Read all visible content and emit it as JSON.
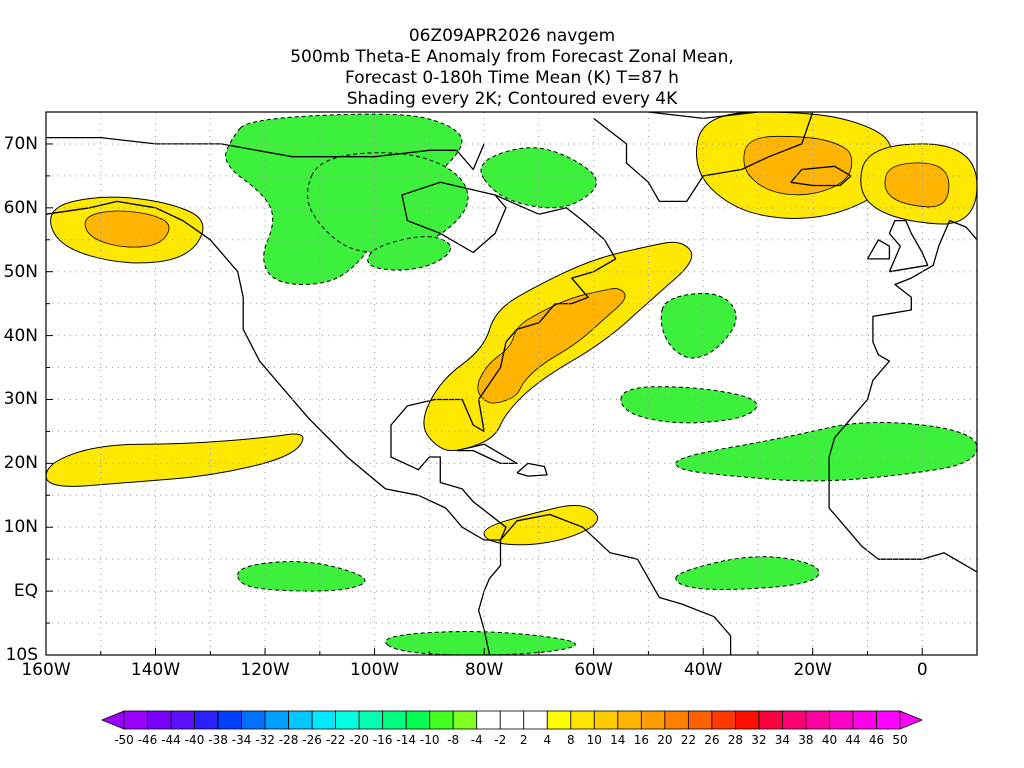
{
  "title_lines": [
    "06Z09APR2026 navgem",
    "500mb Theta-E Anomaly from Forecast Zonal Mean,",
    "Forecast 0-180h Time Mean (K) T=87 h",
    "Shading every 2K; Contoured every 4K"
  ],
  "map": {
    "lon_range": [
      -160,
      10
    ],
    "lat_range": [
      -10,
      75
    ],
    "lon_labels": [
      "160W",
      "140W",
      "120W",
      "100W",
      "80W",
      "60W",
      "40W",
      "20W",
      "0"
    ],
    "lat_labels": [
      "70N",
      "60N",
      "50N",
      "40N",
      "30N",
      "20N",
      "10N",
      "EQ",
      "10S"
    ],
    "grid_dotted": true,
    "land_outline_color": "#000000",
    "anomaly_regions": [
      {
        "name": "canada-north-negative",
        "sign": "negative",
        "points": [
          [
            -123,
            74
          ],
          [
            -95,
            75
          ],
          [
            -86,
            73
          ],
          [
            -83,
            70
          ],
          [
            -90,
            64
          ],
          [
            -98,
            58
          ],
          [
            -102,
            52
          ],
          [
            -108,
            48
          ],
          [
            -118,
            48
          ],
          [
            -121,
            52
          ],
          [
            -118,
            58
          ],
          [
            -120,
            62
          ],
          [
            -128,
            67
          ],
          [
            -126,
            71
          ]
        ]
      },
      {
        "name": "canada-central-negative",
        "sign": "negative",
        "points": [
          [
            -110,
            68
          ],
          [
            -95,
            69
          ],
          [
            -85,
            66
          ],
          [
            -82,
            61
          ],
          [
            -87,
            56
          ],
          [
            -95,
            53
          ],
          [
            -104,
            53
          ],
          [
            -110,
            57
          ],
          [
            -113,
            62
          ]
        ]
      },
      {
        "name": "baffin-negative",
        "sign": "negative",
        "points": [
          [
            -82,
            67
          ],
          [
            -72,
            70
          ],
          [
            -64,
            68
          ],
          [
            -58,
            64
          ],
          [
            -64,
            60
          ],
          [
            -71,
            60
          ],
          [
            -78,
            62
          ]
        ]
      },
      {
        "name": "hudson-bay-negative-core",
        "sign": "negative",
        "points": [
          [
            -100,
            54
          ],
          [
            -90,
            56
          ],
          [
            -85,
            54
          ],
          [
            -89,
            51
          ],
          [
            -96,
            50
          ],
          [
            -102,
            51
          ]
        ]
      },
      {
        "name": "alaska-positive",
        "sign": "positive",
        "points": [
          [
            -160,
            60
          ],
          [
            -150,
            62
          ],
          [
            -138,
            61
          ],
          [
            -130,
            58
          ],
          [
            -134,
            52
          ],
          [
            -146,
            51
          ],
          [
            -158,
            54
          ]
        ]
      },
      {
        "name": "greenland-positive",
        "sign": "positive",
        "points": [
          [
            -40,
            75
          ],
          [
            -20,
            75
          ],
          [
            -10,
            73
          ],
          [
            -5,
            70
          ],
          [
            -6,
            63
          ],
          [
            -15,
            59
          ],
          [
            -25,
            58
          ],
          [
            -35,
            60
          ],
          [
            -42,
            66
          ]
        ]
      },
      {
        "name": "east-atlantic-positive",
        "sign": "positive",
        "points": [
          [
            -10,
            70
          ],
          [
            10,
            70
          ],
          [
            10,
            57
          ],
          [
            -5,
            58
          ],
          [
            -12,
            62
          ]
        ]
      },
      {
        "name": "us-east-positive",
        "sign": "positive",
        "points": [
          [
            -78,
            44
          ],
          [
            -70,
            48
          ],
          [
            -60,
            52
          ],
          [
            -50,
            54
          ],
          [
            -44,
            55
          ],
          [
            -41,
            52
          ],
          [
            -49,
            46
          ],
          [
            -58,
            39
          ],
          [
            -70,
            33
          ],
          [
            -76,
            28
          ],
          [
            -78,
            24
          ],
          [
            -84,
            22
          ],
          [
            -88,
            22
          ],
          [
            -92,
            26
          ],
          [
            -88,
            33
          ],
          [
            -80,
            38
          ]
        ]
      },
      {
        "name": "mid-atlantic-negative",
        "sign": "negative",
        "points": [
          [
            -47,
            46
          ],
          [
            -37,
            47
          ],
          [
            -33,
            43
          ],
          [
            -37,
            38
          ],
          [
            -42,
            36
          ],
          [
            -46,
            38
          ],
          [
            -48,
            42
          ]
        ]
      },
      {
        "name": "subtropical-atlantic-negative",
        "sign": "negative",
        "points": [
          [
            -55,
            32
          ],
          [
            -41,
            32
          ],
          [
            -29,
            30
          ],
          [
            -32,
            27
          ],
          [
            -45,
            26
          ],
          [
            -55,
            28
          ]
        ]
      },
      {
        "name": "west-africa-negative",
        "sign": "negative",
        "points": [
          [
            -45,
            21
          ],
          [
            -25,
            24
          ],
          [
            -10,
            27
          ],
          [
            10,
            25
          ],
          [
            10,
            20
          ],
          [
            -5,
            18
          ],
          [
            -20,
            17
          ],
          [
            -35,
            18
          ],
          [
            -45,
            19
          ]
        ]
      },
      {
        "name": "pacific-positive",
        "sign": "positive",
        "points": [
          [
            -160,
            20
          ],
          [
            -150,
            23
          ],
          [
            -135,
            23
          ],
          [
            -120,
            24
          ],
          [
            -112,
            25
          ],
          [
            -115,
            21
          ],
          [
            -130,
            18
          ],
          [
            -145,
            17
          ],
          [
            -160,
            16
          ]
        ]
      },
      {
        "name": "caribbean-positive",
        "sign": "positive",
        "points": [
          [
            -80,
            10
          ],
          [
            -72,
            12
          ],
          [
            -62,
            14
          ],
          [
            -58,
            11
          ],
          [
            -65,
            8
          ],
          [
            -74,
            7
          ],
          [
            -80,
            8
          ]
        ]
      },
      {
        "name": "eastern-pacific-negative",
        "sign": "negative",
        "points": [
          [
            -125,
            4
          ],
          [
            -112,
            5
          ],
          [
            -100,
            2
          ],
          [
            -105,
            0
          ],
          [
            -118,
            0
          ],
          [
            -125,
            1
          ]
        ]
      },
      {
        "name": "equatorial-atlantic-negative",
        "sign": "negative",
        "points": [
          [
            -45,
            3
          ],
          [
            -30,
            6
          ],
          [
            -18,
            4
          ],
          [
            -20,
            1
          ],
          [
            -38,
            0
          ],
          [
            -45,
            1
          ]
        ]
      },
      {
        "name": "south-atlantic-negative",
        "sign": "negative",
        "points": [
          [
            -100,
            -7
          ],
          [
            -80,
            -6
          ],
          [
            -60,
            -8
          ],
          [
            -70,
            -10
          ],
          [
            -95,
            -10
          ]
        ]
      }
    ]
  },
  "colorbar": {
    "labels": [
      "-50",
      "-46",
      "-44",
      "-40",
      "-38",
      "-34",
      "-32",
      "-28",
      "-26",
      "-22",
      "-20",
      "-16",
      "-14",
      "-10",
      "-8",
      "-4",
      "-2",
      "2",
      "4",
      "8",
      "10",
      "14",
      "16",
      "20",
      "22",
      "26",
      "28",
      "32",
      "34",
      "38",
      "40",
      "44",
      "46",
      "50"
    ],
    "colors": [
      "#9b00ff",
      "#7a00ff",
      "#5a10ff",
      "#2a20ff",
      "#0040ff",
      "#0070ff",
      "#00a0ff",
      "#00c8ff",
      "#00e8ff",
      "#00ffe0",
      "#00ffb0",
      "#00ff80",
      "#00ff50",
      "#40ff20",
      "#80ff20",
      "#ffffff",
      "#ffffff",
      "#ffffff",
      "#ffff00",
      "#ffe400",
      "#ffcc00",
      "#ffb400",
      "#ff9c00",
      "#ff8000",
      "#ff6000",
      "#ff3800",
      "#ff1000",
      "#ff0040",
      "#ff0070",
      "#ff00a0",
      "#ff00c8",
      "#ff00e8",
      "#ff00ff"
    ],
    "negative_shade": "#3cf03c",
    "positive_shade": "#ffe800",
    "strong_positive_shade": "#ffb400"
  }
}
